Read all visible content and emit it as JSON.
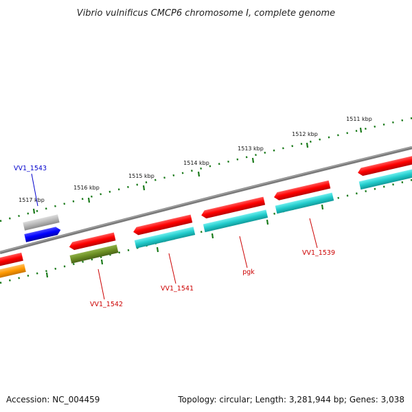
{
  "title": "Vibrio vulnificus CMCP6 chromosome I, complete genome",
  "kbp_labels": [
    "1511 kbp",
    "1512 kbp",
    "1513 kbp",
    "1514 kbp",
    "1515 kbp",
    "1516 kbp",
    "1517 kbp"
  ],
  "gene_labels": {
    "vv1_1543": "VV1_1543",
    "vv1_1542": "VV1_1542",
    "vv1_1541": "VV1_1541",
    "pgk": "pgk",
    "vv1_1539": "VV1_1539"
  },
  "colors": {
    "backbone": "#7a7a7a",
    "tick": "#1a7a1a",
    "label_red": "#cc0000",
    "label_blue": "#0000cc",
    "gene_red": "#ff0000",
    "gene_cyan": "#22cccc",
    "gene_blue": "#0000ff",
    "gene_gray": "#b8b8b8",
    "gene_olive": "#6b8e23",
    "gene_orange": "#ff9900"
  },
  "footer": {
    "accession": "Accession: NC_004459",
    "summary": "Topology: circular; Length: 3,281,944 bp; Genes: 3,038"
  }
}
